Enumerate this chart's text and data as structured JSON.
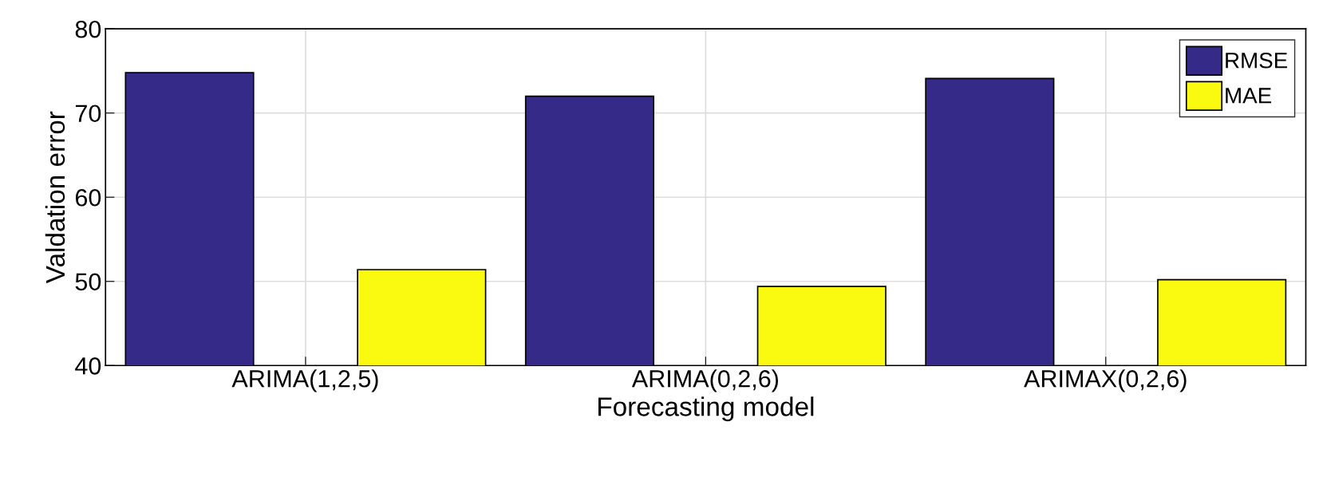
{
  "chart_data": {
    "type": "bar",
    "xlabel": "Forecasting model",
    "ylabel": "Valdation error",
    "categories": [
      "ARIMA(1,2,5)",
      "ARIMA(0,2,6)",
      "ARIMAX(0,2,6)"
    ],
    "series": [
      {
        "name": "RMSE",
        "color": "#352a87",
        "values": [
          74.8,
          72.0,
          74.1
        ]
      },
      {
        "name": "MAE",
        "color": "#f9fa0f",
        "values": [
          51.4,
          49.4,
          50.2
        ]
      }
    ],
    "ylim": [
      40,
      80
    ],
    "yticks": [
      40,
      50,
      60,
      70,
      80
    ],
    "grid": true,
    "legend": "top right"
  }
}
